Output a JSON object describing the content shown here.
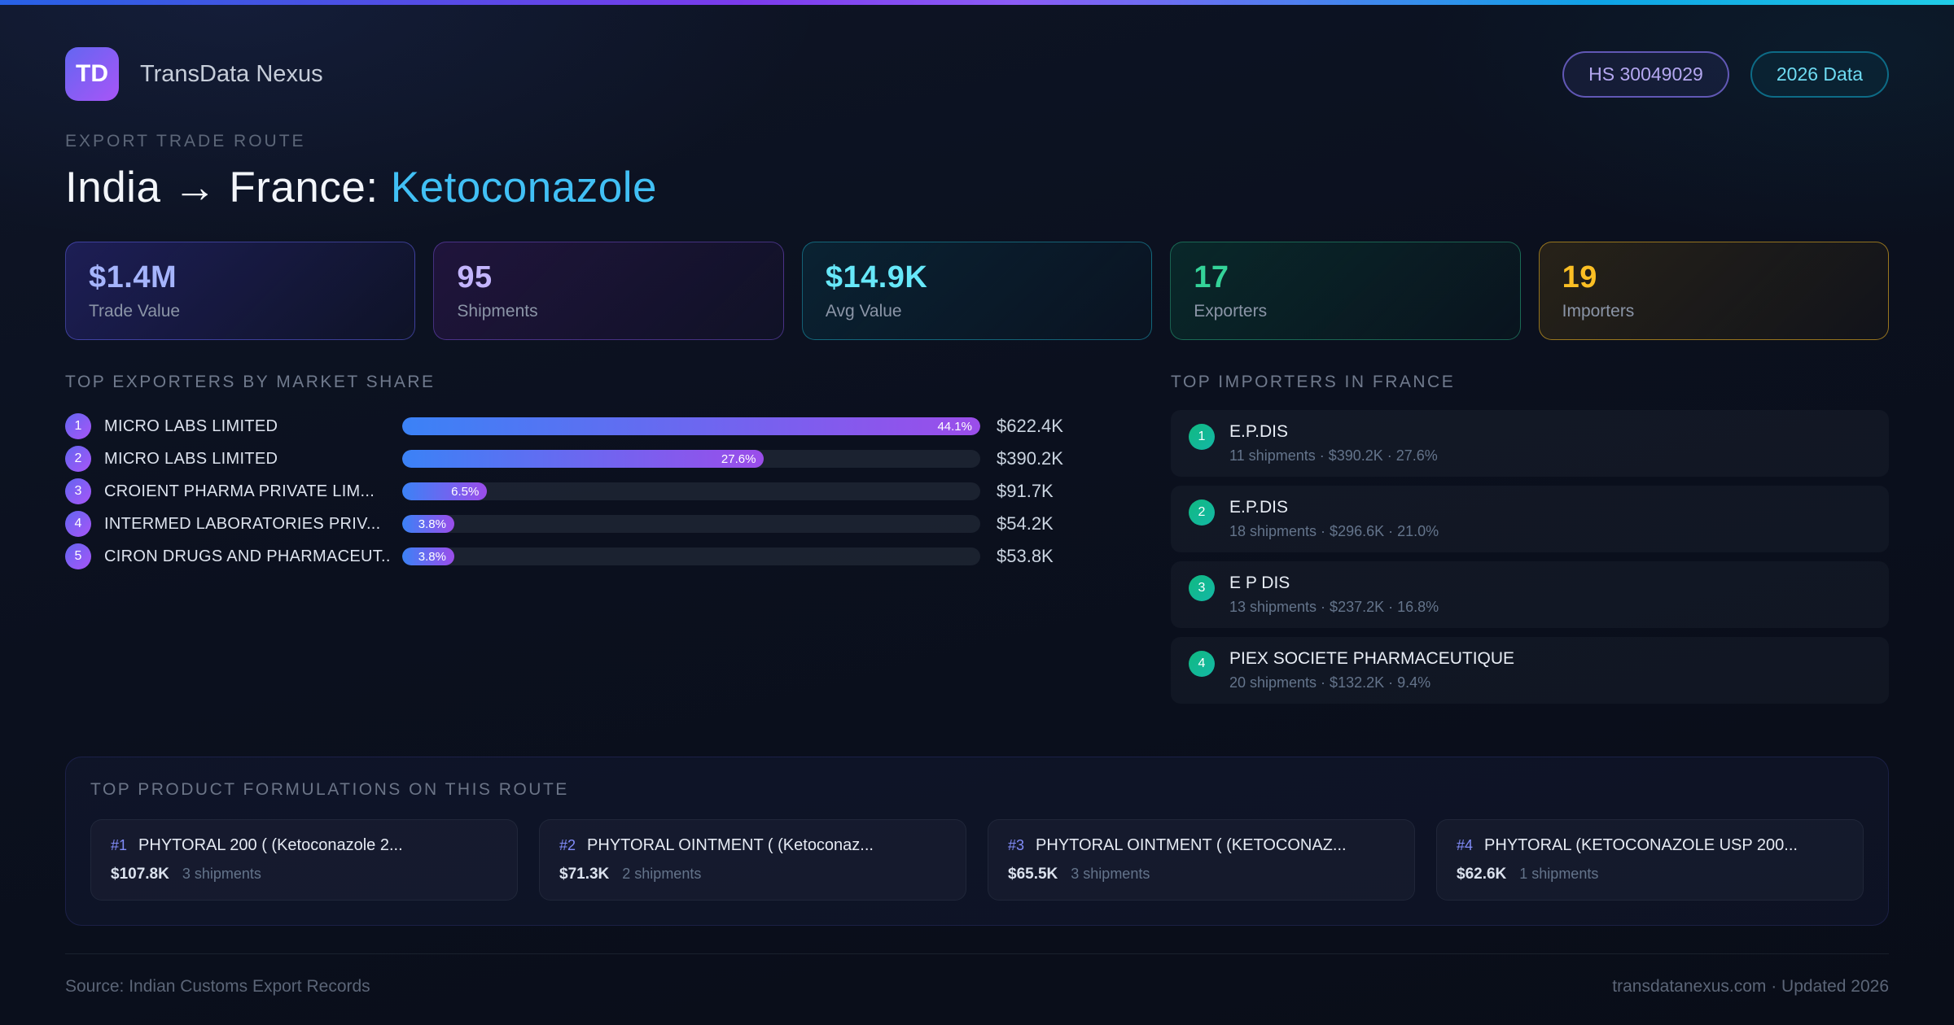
{
  "header": {
    "logo_text": "TD",
    "app_name": "TransData Nexus",
    "hs_badge": "HS 30049029",
    "year_badge": "2026 Data"
  },
  "hero": {
    "eyebrow": "EXPORT TRADE ROUTE",
    "route": "India → France: ",
    "product": "Ketoconazole"
  },
  "stats": [
    {
      "value": "$1.4M",
      "label": "Trade Value",
      "color": "#a5b4fc"
    },
    {
      "value": "95",
      "label": "Shipments",
      "color": "#c4b5fd"
    },
    {
      "value": "$14.9K",
      "label": "Avg Value",
      "color": "#67e8f9"
    },
    {
      "value": "17",
      "label": "Exporters",
      "color": "#34d399"
    },
    {
      "value": "19",
      "label": "Importers",
      "color": "#fbbf24"
    }
  ],
  "exporters": {
    "title": "TOP EXPORTERS BY MARKET SHARE",
    "rows": [
      {
        "rank": "1",
        "name": "MICRO LABS LIMITED",
        "share_pct": 44.1,
        "share_label": "44.1%",
        "value": "$622.4K"
      },
      {
        "rank": "2",
        "name": "MICRO LABS LIMITED",
        "share_pct": 27.6,
        "share_label": "27.6%",
        "value": "$390.2K"
      },
      {
        "rank": "3",
        "name": "CROIENT PHARMA PRIVATE LIM...",
        "share_pct": 6.5,
        "share_label": "6.5%",
        "value": "$91.7K"
      },
      {
        "rank": "4",
        "name": "INTERMED LABORATORIES PRIV...",
        "share_pct": 3.8,
        "share_label": "3.8%",
        "value": "$54.2K"
      },
      {
        "rank": "5",
        "name": "CIRON DRUGS AND PHARMACEUT...",
        "share_pct": 3.8,
        "share_label": "3.8%",
        "value": "$53.8K"
      }
    ]
  },
  "importers": {
    "title": "TOP IMPORTERS IN FRANCE",
    "rows": [
      {
        "rank": "1",
        "name": "E.P.DIS",
        "detail": "11 shipments · $390.2K · 27.6%"
      },
      {
        "rank": "2",
        "name": "E.P.DIS",
        "detail": "18 shipments · $296.6K · 21.0%"
      },
      {
        "rank": "3",
        "name": "E P DIS",
        "detail": "13 shipments · $237.2K · 16.8%"
      },
      {
        "rank": "4",
        "name": "PIEX SOCIETE PHARMACEUTIQUE",
        "detail": "20 shipments · $132.2K · 9.4%"
      }
    ]
  },
  "products": {
    "title": "TOP PRODUCT FORMULATIONS ON THIS ROUTE",
    "cards": [
      {
        "rank": "#1",
        "name": "PHYTORAL 200 ( (Ketoconazole 2...",
        "value": "$107.8K",
        "shipments": "3 shipments"
      },
      {
        "rank": "#2",
        "name": "PHYTORAL OINTMENT ( (Ketoconaz...",
        "value": "$71.3K",
        "shipments": "2 shipments"
      },
      {
        "rank": "#3",
        "name": "PHYTORAL OINTMENT ( (KETOCONAZ...",
        "value": "$65.5K",
        "shipments": "3 shipments"
      },
      {
        "rank": "#4",
        "name": "PHYTORAL (KETOCONAZOLE USP 200...",
        "value": "$62.6K",
        "shipments": "1 shipments"
      }
    ]
  },
  "footer": {
    "source": "Source: Indian Customs Export Records",
    "site": "transdatanexus.com · Updated 2026"
  }
}
